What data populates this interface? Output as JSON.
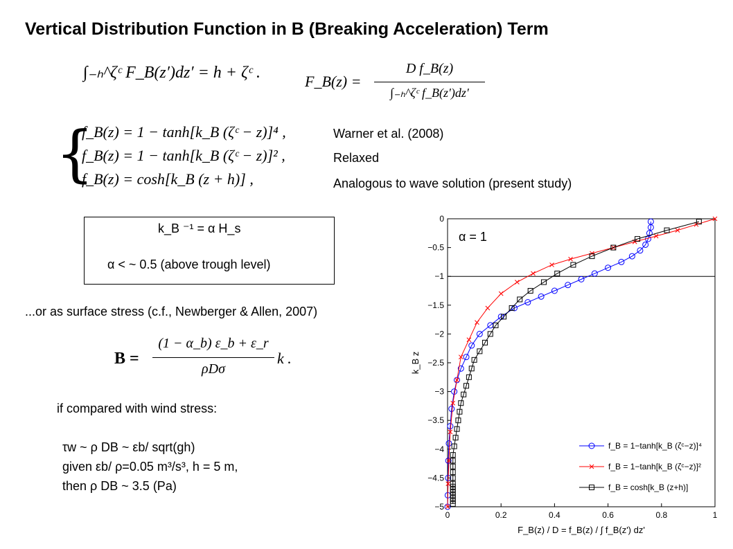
{
  "title": "Vertical Distribution Function in B (Breaking Acceleration) Term",
  "equations": {
    "integral_left": "∫₋ₕ^ζᶜ F_B(z′)dz′ = h + ζᶜ .",
    "fb_def_left": "F_B(z) =",
    "fb_num": "D f_B(z)",
    "fb_den": "∫₋ₕ^ζᶜ f_B(z′)dz′",
    "case1": "f_B(z) = 1 − tanh[k_B (ζᶜ − z)]⁴ ,",
    "case2": "f_B(z) = 1 − tanh[k_B (ζᶜ − z)]² ,",
    "case3": "f_B(z) = cosh[k_B (z + h)] ,",
    "bvec_lhs": "B =",
    "bvec_num": "(1 − α_b) ε_b + ε_r",
    "bvec_den": "ρDσ",
    "bvec_rhs": "k ."
  },
  "case_labels": [
    "Warner et al. (2008)",
    "Relaxed",
    "Analogous to wave solution  (present study)"
  ],
  "box": {
    "line1": "k_B ⁻¹ = α H_s",
    "line2": "α < ~ 0.5 (above trough level)"
  },
  "surface_stress_text": "...or as surface stress (c.f., Newberger & Allen, 2007)",
  "compare_text": "if compared with wind stress:",
  "compare_lines": [
    "τw ~ ρ DB ~ εb/ sqrt(gh)",
    "given εb/ ρ=0.05 m³/s³, h = 5 m,",
    "then ρ DB ~ 3.5 (Pa)"
  ],
  "chart_data": {
    "type": "line",
    "annotation": "α = 1",
    "xlabel": "F_B(z) / D = f_B(z) / ∫ f_B(z') dz'",
    "ylabel": "k_B z",
    "xlim": [
      0,
      1
    ],
    "ylim": [
      -5,
      0
    ],
    "xticks": [
      "0",
      "0.2",
      "0.4",
      "0.6",
      "0.8",
      "1"
    ],
    "yticks": [
      "0",
      "−0.5",
      "−1",
      "−1.5",
      "−2",
      "−2.5",
      "−3",
      "−3.5",
      "−4",
      "−4.5",
      "−5"
    ],
    "hline": -1,
    "legend_position": "bottom-right",
    "series": [
      {
        "name": "f_B = 1−tanh[k_B (ζᶜ−z)]⁴",
        "color": "#0000ff",
        "marker": "circle",
        "x": [
          0.76,
          0.76,
          0.755,
          0.75,
          0.74,
          0.72,
          0.69,
          0.65,
          0.6,
          0.55,
          0.5,
          0.45,
          0.4,
          0.35,
          0.3,
          0.25,
          0.2,
          0.16,
          0.12,
          0.09,
          0.07,
          0.05,
          0.035,
          0.025,
          0.015,
          0.01,
          0.005,
          0.003,
          0.002,
          0.001,
          0.0
        ],
        "y": [
          -0.05,
          -0.15,
          -0.25,
          -0.35,
          -0.45,
          -0.55,
          -0.65,
          -0.75,
          -0.85,
          -0.95,
          -1.05,
          -1.15,
          -1.25,
          -1.35,
          -1.45,
          -1.55,
          -1.7,
          -1.85,
          -2.0,
          -2.2,
          -2.4,
          -2.6,
          -2.8,
          -3.0,
          -3.3,
          -3.6,
          -3.9,
          -4.2,
          -4.5,
          -4.8,
          -5.0
        ]
      },
      {
        "name": "f_B = 1−tanh[k_B (ζᶜ−z)]²",
        "color": "#ff0000",
        "marker": "x",
        "x": [
          1.0,
          0.93,
          0.86,
          0.78,
          0.7,
          0.62,
          0.54,
          0.46,
          0.39,
          0.32,
          0.26,
          0.2,
          0.15,
          0.11,
          0.08,
          0.05,
          0.035,
          0.02,
          0.01,
          0.005,
          0.002,
          0.0
        ],
        "y": [
          0.0,
          -0.1,
          -0.2,
          -0.3,
          -0.4,
          -0.5,
          -0.6,
          -0.7,
          -0.8,
          -0.95,
          -1.1,
          -1.3,
          -1.55,
          -1.8,
          -2.1,
          -2.4,
          -2.8,
          -3.2,
          -3.7,
          -4.2,
          -4.6,
          -5.0
        ]
      },
      {
        "name": "f_B = cosh[k_B (z+h)]",
        "color": "#000000",
        "marker": "square",
        "x": [
          0.94,
          0.82,
          0.71,
          0.62,
          0.54,
          0.47,
          0.41,
          0.36,
          0.31,
          0.27,
          0.24,
          0.21,
          0.18,
          0.16,
          0.14,
          0.12,
          0.1,
          0.09,
          0.08,
          0.07,
          0.06,
          0.05,
          0.045,
          0.04,
          0.035,
          0.03,
          0.025,
          0.02,
          0.02,
          0.02,
          0.02,
          0.02,
          0.02,
          0.02,
          0.02,
          0.02,
          0.02,
          0.02,
          0.02,
          0.02
        ],
        "y": [
          -0.05,
          -0.2,
          -0.35,
          -0.5,
          -0.65,
          -0.8,
          -0.95,
          -1.1,
          -1.25,
          -1.4,
          -1.55,
          -1.7,
          -1.85,
          -2.0,
          -2.15,
          -2.3,
          -2.45,
          -2.6,
          -2.75,
          -2.9,
          -3.05,
          -3.2,
          -3.35,
          -3.5,
          -3.65,
          -3.8,
          -3.95,
          -4.1,
          -4.2,
          -4.3,
          -4.4,
          -4.5,
          -4.6,
          -4.65,
          -4.7,
          -4.75,
          -4.8,
          -4.85,
          -4.9,
          -4.95
        ]
      }
    ]
  }
}
